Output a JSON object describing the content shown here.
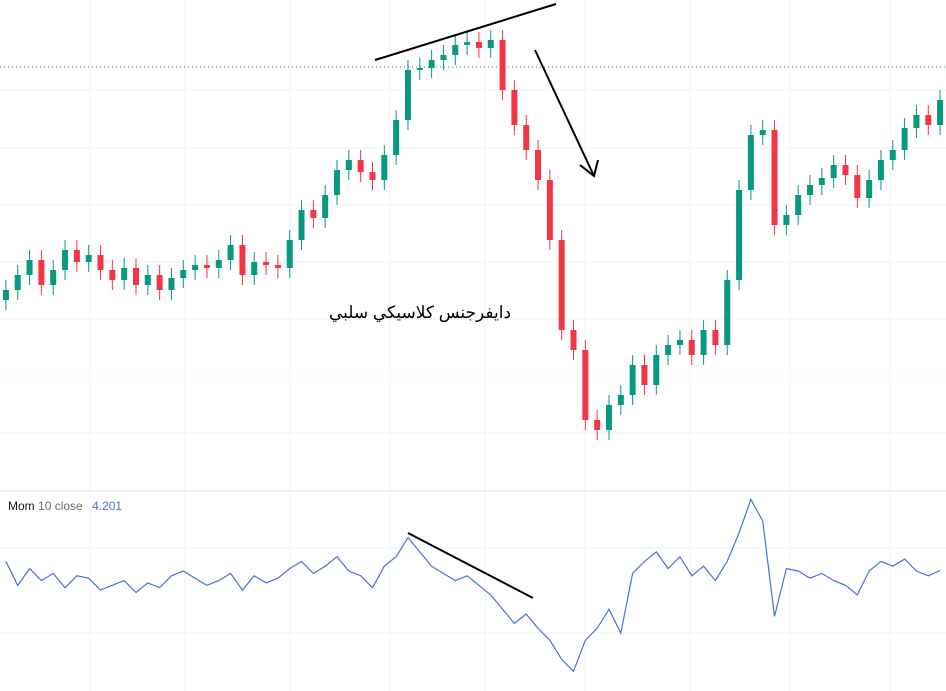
{
  "chart_data": [
    {
      "type": "candlestick",
      "annotation": "دايفرجنس كلاسيكي سلبي",
      "up_color": "#089981",
      "down_color": "#f23645",
      "ylim": [
        0,
        490
      ],
      "open": [
        190,
        200,
        215,
        230,
        205,
        220,
        240,
        228,
        235,
        220,
        210,
        222,
        205,
        215,
        200,
        212,
        220,
        225,
        222,
        230,
        245,
        215,
        228,
        225,
        222,
        250,
        280,
        272,
        295,
        320,
        330,
        318,
        310,
        335,
        370,
        420,
        422,
        430,
        435,
        445,
        448,
        442,
        450,
        400,
        365,
        340,
        310,
        250,
        160,
        140,
        70,
        60,
        85,
        95,
        125,
        105,
        135,
        145,
        150,
        135,
        160,
        145,
        210,
        300,
        355,
        360,
        265,
        275,
        295,
        305,
        312,
        325,
        315,
        292,
        310,
        330,
        340,
        362,
        375,
        365
      ],
      "high": [
        210,
        225,
        240,
        240,
        230,
        250,
        250,
        245,
        245,
        230,
        232,
        232,
        225,
        225,
        222,
        230,
        235,
        235,
        240,
        255,
        255,
        238,
        238,
        235,
        260,
        290,
        290,
        305,
        330,
        340,
        340,
        328,
        345,
        380,
        430,
        432,
        440,
        445,
        455,
        458,
        458,
        460,
        460,
        410,
        375,
        350,
        320,
        260,
        170,
        150,
        80,
        95,
        105,
        135,
        135,
        145,
        155,
        160,
        160,
        170,
        170,
        220,
        310,
        365,
        370,
        370,
        285,
        305,
        315,
        322,
        335,
        335,
        325,
        320,
        340,
        350,
        372,
        385,
        385,
        400
      ],
      "low": [
        180,
        190,
        205,
        195,
        195,
        210,
        218,
        218,
        210,
        200,
        200,
        195,
        195,
        190,
        190,
        202,
        210,
        212,
        212,
        220,
        205,
        205,
        215,
        212,
        212,
        240,
        262,
        262,
        285,
        310,
        308,
        300,
        300,
        325,
        360,
        410,
        412,
        420,
        425,
        435,
        432,
        432,
        390,
        355,
        330,
        300,
        240,
        150,
        130,
        60,
        50,
        50,
        75,
        85,
        95,
        95,
        125,
        135,
        125,
        125,
        135,
        135,
        200,
        290,
        345,
        255,
        255,
        265,
        285,
        295,
        302,
        305,
        282,
        282,
        300,
        320,
        330,
        352,
        355,
        355
      ],
      "close": [
        200,
        215,
        230,
        205,
        220,
        240,
        228,
        235,
        220,
        210,
        222,
        205,
        215,
        200,
        212,
        220,
        225,
        222,
        230,
        245,
        215,
        228,
        225,
        222,
        250,
        280,
        272,
        295,
        320,
        330,
        318,
        310,
        335,
        370,
        420,
        422,
        430,
        435,
        445,
        448,
        442,
        450,
        400,
        365,
        340,
        310,
        250,
        160,
        140,
        70,
        60,
        85,
        95,
        125,
        105,
        135,
        145,
        150,
        135,
        160,
        145,
        210,
        300,
        355,
        360,
        265,
        275,
        295,
        305,
        312,
        325,
        315,
        292,
        310,
        330,
        340,
        362,
        375,
        365,
        390
      ]
    },
    {
      "type": "line",
      "name": "Mom",
      "params": "10 close",
      "color": "#4e6de3",
      "ylim": [
        -46.25,
        37.5
      ],
      "values": [
        8,
        -2,
        5,
        0,
        3,
        -3,
        2,
        1,
        -4,
        -2,
        0,
        -5,
        -1,
        -3,
        2,
        4,
        1,
        -2,
        0,
        3,
        -4,
        2,
        -1,
        1,
        5,
        8,
        3,
        6,
        10,
        4,
        2,
        -3,
        6,
        10,
        18,
        12,
        6,
        3,
        0,
        2,
        -2,
        -6,
        -12,
        -18,
        -14,
        -20,
        -25,
        -33,
        -38,
        -25,
        -20,
        -12,
        -22,
        3,
        8,
        12,
        5,
        10,
        2,
        6,
        0,
        8,
        20,
        34,
        25,
        -15,
        5,
        4,
        1,
        3,
        0,
        -2,
        -6,
        4,
        8,
        6,
        9,
        4,
        2,
        4.201
      ]
    }
  ]
}
